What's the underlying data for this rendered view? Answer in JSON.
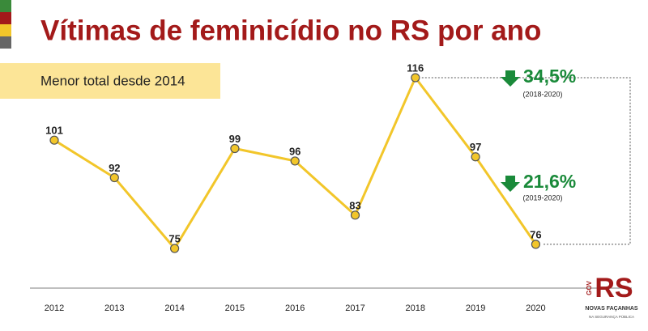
{
  "chart_data": {
    "type": "line",
    "title": "Vítimas de feminicídio no RS por ano",
    "subtitle": "Menor total desde 2014",
    "categories": [
      "2012",
      "2013",
      "2014",
      "2015",
      "2016",
      "2017",
      "2018",
      "2019",
      "2020"
    ],
    "values": [
      101,
      92,
      75,
      99,
      96,
      83,
      116,
      97,
      76
    ],
    "color": "#f2c62a",
    "annotations": [
      {
        "text": "34,5%",
        "note": "(2018-2020)"
      },
      {
        "text": "21,6%",
        "note": "(2019-2020)"
      }
    ]
  },
  "logo": {
    "gov": "GOV",
    "brand": "RS",
    "tagline": "NOVAS FAÇANHAS",
    "sub": "NA SEGURANÇA PÚBLICA"
  }
}
